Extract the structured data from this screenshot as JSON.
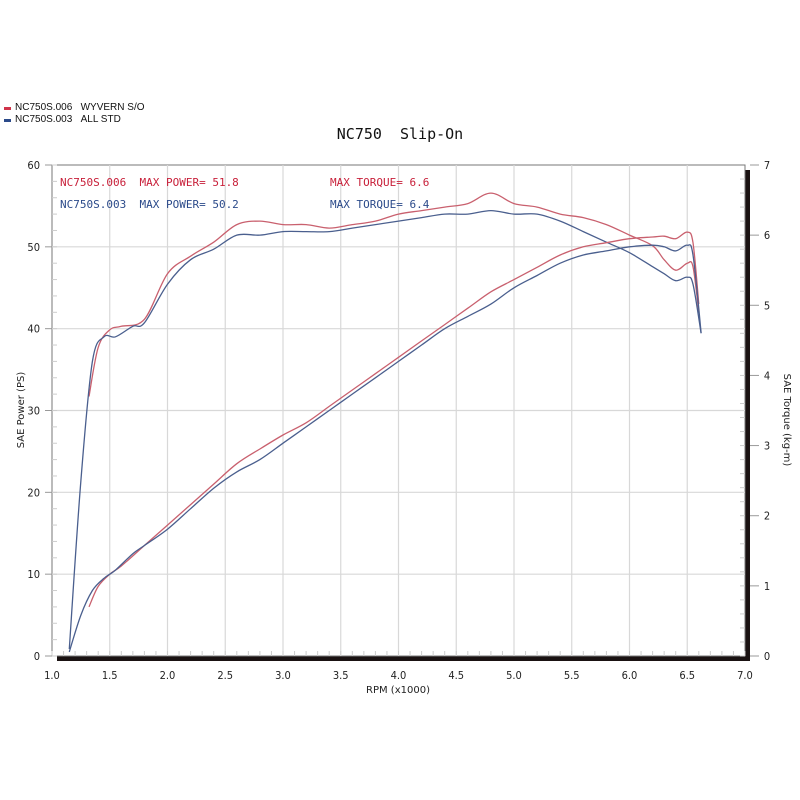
{
  "legend": [
    {
      "label": "NC750S.006",
      "desc": "WYVERN S/O",
      "color": "#d0344a"
    },
    {
      "label": "NC750S.003",
      "desc": "ALL STD",
      "color": "#2b4a8a"
    }
  ],
  "title": "NC750  Slip-On",
  "annotations": {
    "red_power": "NC750S.006  MAX POWER= 51.8",
    "red_torque": "MAX TORQUE= 6.6",
    "blue_power": "NC750S.003  MAX POWER= 50.2",
    "blue_torque": "MAX TORQUE= 6.4"
  },
  "chart_data": {
    "type": "line",
    "title": "NC750  Slip-On",
    "xlabel": "RPM (x1000)",
    "ylabel": "SAE Power (PS)",
    "y2label": "SAE Torque (kg-m)",
    "xlim": [
      1.0,
      7.0
    ],
    "ylim": [
      0,
      60
    ],
    "y2lim": [
      0,
      7
    ],
    "xticks": [
      "1.0",
      "1.5",
      "2.0",
      "2.5",
      "3.0",
      "3.5",
      "4.0",
      "4.5",
      "5.0",
      "5.5",
      "6.0",
      "6.5",
      "7.0"
    ],
    "yticks": [
      "0",
      "10",
      "20",
      "30",
      "40",
      "50",
      "60"
    ],
    "y2ticks": [
      "0",
      "1",
      "2",
      "3",
      "4",
      "5",
      "6",
      "7"
    ],
    "grid": true,
    "legend_position": "top-left outside",
    "series": [
      {
        "name": "NC750S.006 WYVERN S/O torque",
        "axis": "torque",
        "color": "#c9606e",
        "x": [
          1.32,
          1.4,
          1.5,
          1.6,
          1.8,
          2.0,
          2.2,
          2.4,
          2.6,
          2.8,
          3.0,
          3.2,
          3.4,
          3.6,
          3.8,
          4.0,
          4.2,
          4.4,
          4.6,
          4.8,
          5.0,
          5.2,
          5.4,
          5.6,
          5.8,
          6.0,
          6.2,
          6.3,
          6.4,
          6.5,
          6.55,
          6.6
        ],
        "y": [
          3.7,
          4.4,
          4.65,
          4.7,
          4.8,
          5.45,
          5.7,
          5.9,
          6.15,
          6.2,
          6.15,
          6.15,
          6.1,
          6.15,
          6.2,
          6.3,
          6.35,
          6.4,
          6.45,
          6.6,
          6.45,
          6.4,
          6.3,
          6.25,
          6.15,
          6.0,
          5.85,
          5.65,
          5.5,
          5.6,
          5.55,
          4.9
        ]
      },
      {
        "name": "NC750S.003 ALL STD torque",
        "axis": "torque",
        "color": "#4a5f8e",
        "x": [
          1.15,
          1.25,
          1.35,
          1.45,
          1.55,
          1.7,
          1.8,
          2.0,
          2.2,
          2.4,
          2.6,
          2.8,
          3.0,
          3.2,
          3.4,
          3.6,
          3.8,
          4.0,
          4.2,
          4.4,
          4.6,
          4.8,
          5.0,
          5.2,
          5.4,
          5.6,
          5.8,
          6.0,
          6.2,
          6.3,
          6.4,
          6.5,
          6.55,
          6.62
        ],
        "y": [
          0.1,
          2.5,
          4.2,
          4.55,
          4.55,
          4.7,
          4.75,
          5.3,
          5.65,
          5.8,
          6.0,
          6.0,
          6.05,
          6.05,
          6.05,
          6.1,
          6.15,
          6.2,
          6.25,
          6.3,
          6.3,
          6.35,
          6.3,
          6.3,
          6.2,
          6.05,
          5.9,
          5.75,
          5.55,
          5.45,
          5.35,
          5.4,
          5.3,
          4.6
        ]
      },
      {
        "name": "NC750S.006 WYVERN S/O power",
        "axis": "power",
        "color": "#c9606e",
        "x": [
          1.32,
          1.4,
          1.5,
          1.6,
          1.8,
          2.0,
          2.2,
          2.4,
          2.6,
          2.8,
          3.0,
          3.2,
          3.4,
          3.6,
          3.8,
          4.0,
          4.2,
          4.4,
          4.6,
          4.8,
          5.0,
          5.2,
          5.4,
          5.6,
          5.8,
          6.0,
          6.2,
          6.3,
          6.4,
          6.5,
          6.55,
          6.6
        ],
        "y": [
          6,
          8.5,
          10,
          11,
          13.5,
          16,
          18.5,
          21,
          23.5,
          25.3,
          27,
          28.5,
          30.5,
          32.5,
          34.5,
          36.5,
          38.5,
          40.5,
          42.5,
          44.5,
          46,
          47.5,
          49,
          50,
          50.5,
          51,
          51.2,
          51.3,
          51,
          51.8,
          50.5,
          43
        ]
      },
      {
        "name": "NC750S.003 ALL STD power",
        "axis": "power",
        "color": "#4a5f8e",
        "x": [
          1.15,
          1.25,
          1.35,
          1.45,
          1.55,
          1.7,
          1.8,
          2.0,
          2.2,
          2.4,
          2.6,
          2.8,
          3.0,
          3.2,
          3.4,
          3.6,
          3.8,
          4.0,
          4.2,
          4.4,
          4.6,
          4.8,
          5.0,
          5.2,
          5.4,
          5.6,
          5.8,
          6.0,
          6.2,
          6.3,
          6.4,
          6.5,
          6.55,
          6.62
        ],
        "y": [
          0.5,
          5,
          8,
          9.5,
          10.5,
          12.5,
          13.5,
          15.5,
          18,
          20.5,
          22.5,
          24,
          26,
          28,
          30,
          32,
          34,
          36,
          38,
          40,
          41.5,
          43,
          45,
          46.5,
          48,
          49,
          49.5,
          50,
          50.2,
          50,
          49.5,
          50.2,
          49,
          39.5
        ]
      }
    ]
  },
  "axes": {
    "x_title": "RPM (x1000)",
    "y_title": "SAE Power (PS)",
    "y2_title": "SAE Torque (kg-m)"
  }
}
